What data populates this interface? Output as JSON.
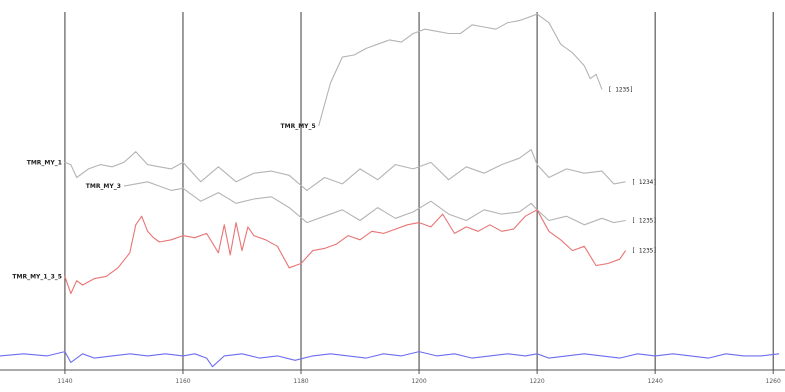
{
  "chart_data": {
    "type": "line",
    "title": "",
    "xlabel": "",
    "ylabel": "",
    "grid": "vertical",
    "x_ticks": [
      1140,
      1160,
      1180,
      1200,
      1220,
      1240,
      1260
    ],
    "x_tick_labels": [
      "1140",
      "1160",
      "1180",
      "1200",
      "1220",
      "1240",
      "1260"
    ],
    "xlim": [
      1129,
      1262
    ],
    "series": [
      {
        "name": "TMR_MY_5",
        "end_label": "[ 1235]",
        "color": "#b4b4b4",
        "x": [
          1183,
          1185,
          1187,
          1189,
          1191,
          1193,
          1195,
          1197,
          1199,
          1201,
          1203,
          1205,
          1207,
          1209,
          1211,
          1213,
          1215,
          1217,
          1219,
          1220,
          1222,
          1224,
          1226,
          1228,
          1229,
          1230,
          1231
        ],
        "y": [
          14,
          34,
          46,
          47,
          50,
          52,
          54,
          53,
          57,
          59,
          58,
          57,
          57,
          61,
          60,
          59,
          62,
          63,
          65,
          66,
          62,
          52,
          48,
          42,
          36,
          38,
          31
        ]
      },
      {
        "name": "TMR_MY_1",
        "end_label": "[ 1234]",
        "color": "#b4b4b4",
        "x": [
          1140,
          1141,
          1142,
          1144,
          1146,
          1148,
          1150,
          1152,
          1154,
          1156,
          1158,
          1160,
          1163,
          1166,
          1169,
          1172,
          1175,
          1178,
          1181,
          1184,
          1187,
          1190,
          1193,
          1196,
          1199,
          1202,
          1205,
          1208,
          1211,
          1214,
          1217,
          1219,
          1220,
          1222,
          1225,
          1228,
          1231,
          1233,
          1235
        ],
        "y": [
          -3,
          -4,
          -10,
          -6,
          -4,
          -5,
          -3,
          2,
          -4,
          -5,
          -6,
          -3,
          -12,
          -5,
          -12,
          -8,
          -7,
          -9,
          -16,
          -10,
          -13,
          -6,
          -11,
          -4,
          -6,
          -3,
          -11,
          -5,
          -8,
          -4,
          -1,
          3,
          -4,
          -10,
          -6,
          -8,
          -7,
          -13,
          -12
        ]
      },
      {
        "name": "TMR_MY_3",
        "end_label": "[ 1235]",
        "color": "#b4b4b4",
        "x": [
          1150,
          1152,
          1154,
          1156,
          1158,
          1160,
          1163,
          1166,
          1169,
          1172,
          1175,
          1178,
          1181,
          1184,
          1187,
          1190,
          1193,
          1196,
          1199,
          1202,
          1205,
          1208,
          1211,
          1214,
          1217,
          1219,
          1220,
          1222,
          1225,
          1228,
          1231,
          1233,
          1235
        ],
        "y": [
          -14,
          -13,
          -12,
          -14,
          -16,
          -15,
          -21,
          -17,
          -22,
          -20,
          -19,
          -24,
          -31,
          -28,
          -25,
          -30,
          -24,
          -29,
          -26,
          -21,
          -27,
          -30,
          -25,
          -27,
          -26,
          -22,
          -25,
          -30,
          -28,
          -32,
          -29,
          -31,
          -30
        ]
      },
      {
        "name": "TMR_MY_1_3_5",
        "end_label": "[ 1235]",
        "color": "#e87474",
        "x": [
          1140,
          1141,
          1142,
          1143,
          1145,
          1147,
          1149,
          1151,
          1152,
          1153,
          1154,
          1155,
          1156,
          1158,
          1160,
          1162,
          1164,
          1166,
          1167,
          1168,
          1169,
          1170,
          1171,
          1172,
          1174,
          1176,
          1178,
          1180,
          1182,
          1184,
          1186,
          1188,
          1190,
          1192,
          1194,
          1196,
          1198,
          1200,
          1202,
          1204,
          1206,
          1208,
          1210,
          1212,
          1214,
          1216,
          1218,
          1220,
          1222,
          1224,
          1226,
          1228,
          1230,
          1232,
          1234,
          1235
        ],
        "y": [
          -56,
          -64,
          -58,
          -60,
          -57,
          -56,
          -52,
          -45,
          -32,
          -28,
          -35,
          -38,
          -40,
          -39,
          -37,
          -38,
          -36,
          -45,
          -32,
          -46,
          -31,
          -44,
          -33,
          -37,
          -39,
          -42,
          -52,
          -50,
          -44,
          -43,
          -41,
          -37,
          -39,
          -35,
          -36,
          -34,
          -32,
          -31,
          -33,
          -27,
          -36,
          -33,
          -35,
          -32,
          -35,
          -34,
          -28,
          -25,
          -35,
          -39,
          -44,
          -42,
          -51,
          -50,
          -48,
          -44
        ]
      },
      {
        "name": "",
        "end_label": "",
        "color": "#6d6df0",
        "x": [
          1129,
          1133,
          1137,
          1140,
          1141,
          1143,
          1145,
          1148,
          1151,
          1154,
          1157,
          1160,
          1162,
          1164,
          1165,
          1167,
          1170,
          1173,
          1176,
          1179,
          1182,
          1185,
          1188,
          1191,
          1194,
          1197,
          1200,
          1203,
          1206,
          1209,
          1212,
          1215,
          1218,
          1220,
          1222,
          1225,
          1228,
          1231,
          1234,
          1237,
          1240,
          1243,
          1246,
          1249,
          1252,
          1255,
          1258,
          1261
        ],
        "y": [
          -93,
          -92,
          -93,
          -91,
          -96,
          -92,
          -94,
          -93,
          -92,
          -93,
          -92,
          -93,
          -92,
          -94,
          -98,
          -93,
          -92,
          -94,
          -93,
          -95,
          -93,
          -92,
          -93,
          -94,
          -92,
          -93,
          -91,
          -93,
          -92,
          -94,
          -93,
          -92,
          -93,
          -92,
          -94,
          -93,
          -92,
          -93,
          -94,
          -92,
          -93,
          -92,
          -93,
          -94,
          -92,
          -93,
          -93,
          -92
        ]
      }
    ]
  }
}
